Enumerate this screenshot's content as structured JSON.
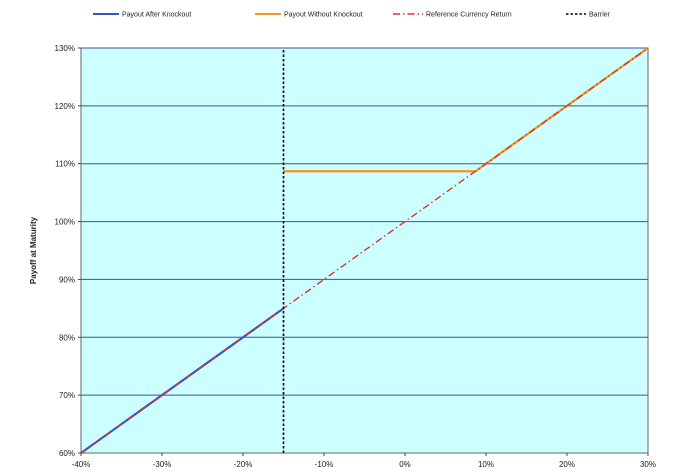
{
  "chart_data": {
    "type": "line",
    "title": "",
    "xlabel": "",
    "ylabel": "Payoff at Maturity",
    "xlim": [
      -40,
      30
    ],
    "ylim": [
      60,
      130
    ],
    "x_ticks": [
      -40,
      -30,
      -20,
      -10,
      0,
      10,
      20,
      30
    ],
    "x_tick_labels": [
      "-40%",
      "-30%",
      "-20%",
      "-10%",
      "0%",
      "10%",
      "20%",
      "30%"
    ],
    "y_ticks": [
      60,
      70,
      80,
      90,
      100,
      110,
      120,
      130
    ],
    "y_tick_labels": [
      "60%",
      "70%",
      "80%",
      "90%",
      "100%",
      "110%",
      "120%",
      "130%"
    ],
    "grid": "horizontal",
    "legend_placement": "top",
    "plot_background": "#ccffff",
    "series": [
      {
        "name": "Payout After Knockout",
        "color": "#3355cc",
        "style": "solid",
        "x": [
          -40,
          -15
        ],
        "y": [
          60,
          85
        ]
      },
      {
        "name": "Payout Without Knockout",
        "color": "#ee9922",
        "style": "solid",
        "x": [
          -15,
          8.7,
          30
        ],
        "y": [
          108.7,
          108.7,
          130
        ]
      },
      {
        "name": "Reference Currency Return",
        "color": "#dd3333",
        "style": "dashdot",
        "x": [
          -40,
          30
        ],
        "y": [
          60,
          130
        ]
      },
      {
        "name": "Barrier",
        "color": "#000000",
        "style": "dotted",
        "x": [
          -15,
          -15
        ],
        "y": [
          60,
          130
        ]
      }
    ]
  }
}
